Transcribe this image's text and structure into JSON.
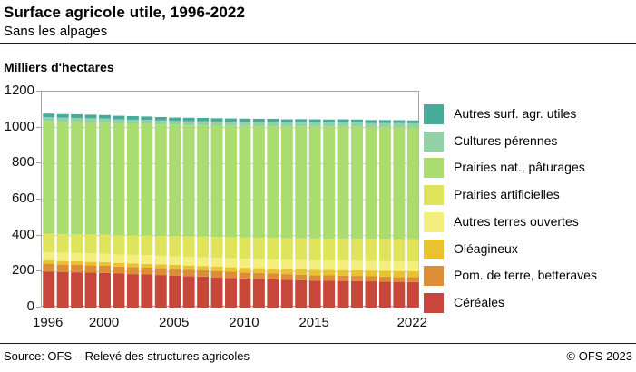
{
  "header": {
    "title": "Surface agricole utile, 1996-2022",
    "subtitle": "Sans les alpages"
  },
  "chart": {
    "unit_label": "Milliers d'hectares"
  },
  "chart_data": {
    "type": "bar",
    "stacked": true,
    "title": "Surface agricole utile, 1996-2022",
    "ylabel": "Milliers d'hectares",
    "ylim": [
      0,
      1200
    ],
    "y_ticks": [
      0,
      200,
      400,
      600,
      800,
      1000,
      1200
    ],
    "grid": true,
    "legend_position": "right",
    "x": [
      1996,
      1997,
      1998,
      1999,
      2000,
      2001,
      2002,
      2003,
      2004,
      2005,
      2006,
      2007,
      2008,
      2009,
      2010,
      2011,
      2012,
      2013,
      2014,
      2015,
      2016,
      2017,
      2018,
      2019,
      2020,
      2021,
      2022
    ],
    "x_ticks": [
      {
        "label": "1996",
        "index": 0
      },
      {
        "label": "2000",
        "index": 4
      },
      {
        "label": "2005",
        "index": 9
      },
      {
        "label": "2010",
        "index": 14
      },
      {
        "label": "2015",
        "index": 19
      },
      {
        "label": "2022",
        "index": 26
      }
    ],
    "series": [
      {
        "name": "Céréales",
        "color": "#c8473b",
        "values": [
          200,
          198,
          196,
          194,
          192,
          189,
          186,
          184,
          181,
          178,
          175,
          172,
          168,
          165,
          162,
          160,
          157,
          155,
          152,
          150,
          149,
          148,
          147,
          146,
          144,
          143,
          142
        ]
      },
      {
        "name": "Pom. de terre, betteraves",
        "color": "#dc8e37",
        "values": [
          42,
          41,
          41,
          40,
          40,
          39,
          39,
          38,
          38,
          37,
          36,
          36,
          35,
          34,
          33,
          32,
          32,
          31,
          31,
          30,
          30,
          29,
          29,
          28,
          28,
          27,
          27
        ]
      },
      {
        "name": "Oléagineux",
        "color": "#e9c32f",
        "values": [
          20,
          20,
          20,
          20,
          20,
          20,
          21,
          21,
          21,
          22,
          23,
          23,
          24,
          25,
          26,
          27,
          27,
          28,
          29,
          30,
          30,
          31,
          31,
          32,
          32,
          33,
          33
        ]
      },
      {
        "name": "Autres terres ouvertes",
        "color": "#f3ee7e",
        "values": [
          46,
          46,
          46,
          47,
          47,
          47,
          47,
          48,
          48,
          48,
          48,
          49,
          49,
          50,
          50,
          50,
          51,
          51,
          52,
          52,
          52,
          53,
          53,
          53,
          54,
          54,
          54
        ]
      },
      {
        "name": "Prairies artificielles",
        "color": "#dfe45a",
        "values": [
          102,
          103,
          104,
          105,
          106,
          107,
          108,
          110,
          111,
          112,
          113,
          114,
          116,
          117,
          118,
          119,
          120,
          120,
          121,
          122,
          122,
          123,
          123,
          123,
          124,
          124,
          124
        ]
      },
      {
        "name": "Prairies nat., pâturages",
        "color": "#aadc70",
        "values": [
          625,
          624,
          624,
          623,
          622,
          621,
          620,
          619,
          618,
          617,
          618,
          618,
          619,
          619,
          620,
          620,
          621,
          621,
          622,
          622,
          622,
          622,
          622,
          621,
          621,
          621,
          621
        ]
      },
      {
        "name": "Cultures pérennes",
        "color": "#92d1a5",
        "values": [
          23,
          23,
          23,
          23,
          23,
          23,
          23,
          23,
          23,
          23,
          23,
          23,
          23,
          23,
          23,
          23,
          23,
          23,
          23,
          23,
          23,
          23,
          23,
          23,
          23,
          23,
          23
        ]
      },
      {
        "name": "Autres surf. agr. utiles",
        "color": "#47ab9a",
        "values": [
          20,
          20,
          20,
          20,
          20,
          20,
          20,
          19,
          19,
          19,
          19,
          19,
          18,
          18,
          18,
          18,
          18,
          17,
          17,
          17,
          17,
          17,
          17,
          16,
          16,
          16,
          16
        ]
      }
    ]
  },
  "footer": {
    "source": "Source: OFS – Relevé des structures agricoles",
    "copyright": "© OFS 2023"
  }
}
